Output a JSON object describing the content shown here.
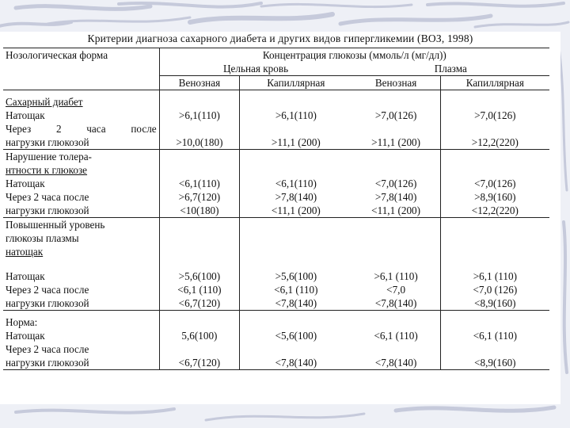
{
  "title": "Критерии диагноза сахарного диабета и других видов гипергликемии (ВОЗ, 1998)",
  "header": {
    "form_label": "Нозологическая форма",
    "concentration": "Концентрация глюкозы (ммоль/л (мг/дл))",
    "whole_blood": "Цельная кровь",
    "plasma": "Плазма",
    "venous_1": "Венозная",
    "capillary_1": "Капиллярная",
    "venous_2": "Венозная",
    "capillary_2": "Капиллярная"
  },
  "groups": {
    "diabetes": {
      "title": "Сахарный диабет",
      "fasting_label": "Натощак",
      "fasting": [
        ">6,1(110)",
        ">6,1(110)",
        ">7,0(126)",
        ">7,0(126)"
      ],
      "after_label_1": "Через 2 часа после",
      "after_label_2": "нагрузки глюкозой",
      "after": [
        ">10,0(180)",
        ">11,1 (200)",
        ">11,1 (200)",
        ">12,2(220)"
      ]
    },
    "tolerance": {
      "title_1": "Нарушение толера-",
      "title_2": "нтности к глюкозе",
      "fasting_label": "Натощак",
      "fasting": [
        "<6,1(110)",
        "<6,1(110)",
        "<7,0(126)",
        "<7,0(126)"
      ],
      "after_label_1": "Через 2 часа после",
      "after_label_2": "нагрузки глюкозой",
      "after_a": [
        ">6,7(120)",
        ">7,8(140)",
        ">7,8(140)",
        ">8,9(160)"
      ],
      "after_b": [
        "<10(180)",
        "<11,1 (200)",
        "<11,1 (200)",
        "<12,2(220)"
      ]
    },
    "fasting_glucose": {
      "title_1": "Повышенный уровень",
      "title_2": "глюкозы плазмы",
      "title_3": "натощак",
      "fasting_label": "Натощак",
      "fasting": [
        ">5,6(100)",
        ">5,6(100)",
        ">6,1 (110)",
        ">6,1 (110)"
      ],
      "after_label_1": "Через 2 часа после",
      "after_label_2": "нагрузки глюкозой",
      "after_a": [
        "<6,1 (110)",
        "<6,1 (110)",
        "<7,0",
        "<7,0 (126)"
      ],
      "after_b": [
        "<6,7(120)",
        "<7,8(140)",
        "<7,8(140)",
        "<8,9(160)"
      ]
    },
    "norm": {
      "title": "Норма:",
      "fasting_label": "Натощак",
      "fasting": [
        "5,6(100)",
        "<5,6(100)",
        "<6,1 (110)",
        "<6,1 (110)"
      ],
      "after_label_1": "Через 2 часа после",
      "after_label_2": "нагрузки глюкозой",
      "after": [
        "<6,7(120)",
        "<7,8(140)",
        "<7,8(140)",
        "<8,9(160)"
      ]
    }
  },
  "colors": {
    "background": "#eef0f6",
    "swirl": "#c6cadb",
    "text": "#111111"
  }
}
